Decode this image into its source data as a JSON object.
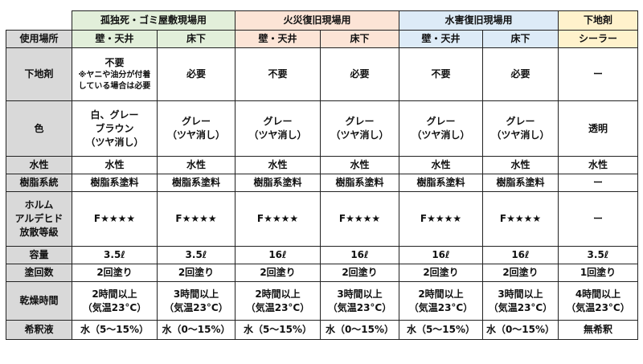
{
  "groups": {
    "kodokushi": "孤独死・ゴミ屋敷現場用",
    "kasai": "火災復旧現場用",
    "suigai": "水害復旧現場用",
    "shitaji": "下地剤"
  },
  "header": {
    "label": "使用場所",
    "c1": "壁・天井",
    "c2": "床下",
    "c3": "壁・天井",
    "c4": "床下",
    "c5": "壁・天井",
    "c6": "床下",
    "c7": "シーラー"
  },
  "rows": {
    "shitaji": {
      "label": "下地剤",
      "c1_l1": "不要",
      "c1_l2": "※ヤニや油分が付着",
      "c1_l3": "している場合は必要",
      "c2": "必要",
      "c3": "不要",
      "c4": "必要",
      "c5": "不要",
      "c6": "必要",
      "c7": "ー"
    },
    "iro": {
      "label": "色",
      "c1_l1": "白、グレー",
      "c1_l2": "ブラウン",
      "c1_l3": "（ツヤ消し）",
      "gray": "グレー",
      "matte": "（ツヤ消し）",
      "c7": "透明"
    },
    "suisei": {
      "label": "水性",
      "value": "水性"
    },
    "jushi": {
      "label": "樹脂系統",
      "value": "樹脂系塗料",
      "c7": "ー"
    },
    "formal": {
      "label_l1": "ホルム",
      "label_l2": "アルデヒド",
      "label_l3": "放散等級",
      "value": "F★★★★",
      "c7": "ー"
    },
    "yoryo": {
      "label": "容量",
      "small": "3.5ℓ",
      "large": "16ℓ"
    },
    "tokai": {
      "label": "塗回数",
      "twice": "2回塗り",
      "once": "1回塗り"
    },
    "kanso": {
      "label": "乾燥時間",
      "h2": "2時間以上",
      "h3": "3時間以上",
      "h4": "4時間以上",
      "temp": "（気温23°C）"
    },
    "kishaku": {
      "label": "希釈液",
      "wall": "水（5～15%）",
      "floor": "水（0～15%）",
      "none": "無希釈"
    }
  }
}
